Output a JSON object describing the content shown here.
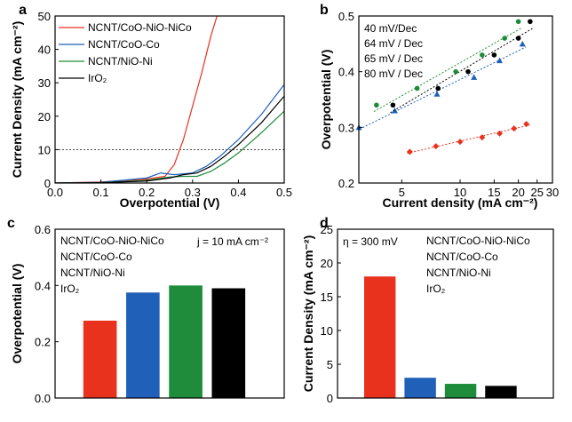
{
  "chart_data": [
    {
      "panel_letter": "a",
      "type": "line",
      "xlabel": "Overpotential (V)",
      "ylabel": "Current Density (mA cm⁻²)",
      "xlim": [
        0.0,
        0.5
      ],
      "ylim": [
        0,
        50
      ],
      "xticks": [
        0.0,
        0.1,
        0.2,
        0.3,
        0.4,
        0.5
      ],
      "xtick_labels": [
        "0.0",
        "0.1",
        "0.2",
        "0.3",
        "0.4",
        "0.5"
      ],
      "yticks": [
        0,
        10,
        20,
        30,
        40,
        50
      ],
      "ytick_labels": [
        "0",
        "10",
        "20",
        "30",
        "40",
        "50"
      ],
      "reference_line_y": 10,
      "legend_placement": "top-left",
      "grid": false,
      "series": [
        {
          "name": "NCNT/CoO-NiO-NiCo",
          "color": "#e8321e",
          "x": [
            0.0,
            0.1,
            0.2,
            0.24,
            0.26,
            0.28,
            0.3,
            0.32,
            0.34,
            0.36
          ],
          "y": [
            0.0,
            0.3,
            1.2,
            2.0,
            5.5,
            13,
            23,
            33,
            44,
            53
          ]
        },
        {
          "name": "NCNT/CoO-Co",
          "color": "#2060b8",
          "x": [
            0.0,
            0.1,
            0.2,
            0.23,
            0.26,
            0.3,
            0.33,
            0.36,
            0.4,
            0.45,
            0.5
          ],
          "y": [
            0.0,
            0.2,
            1.5,
            3.0,
            2.5,
            3.0,
            5.0,
            8.0,
            13.0,
            20.5,
            29.5
          ]
        },
        {
          "name": "NCNT/NiO-Ni",
          "color": "#1e8c3a",
          "x": [
            0.0,
            0.1,
            0.2,
            0.25,
            0.28,
            0.31,
            0.34,
            0.37,
            0.4,
            0.45,
            0.5
          ],
          "y": [
            0.0,
            0.1,
            0.8,
            1.8,
            2.0,
            2.0,
            3.5,
            6.0,
            9.0,
            15.0,
            21.5
          ]
        },
        {
          "name": "IrO₂",
          "color": "#000000",
          "x": [
            0.0,
            0.1,
            0.2,
            0.25,
            0.28,
            0.31,
            0.34,
            0.37,
            0.4,
            0.45,
            0.5
          ],
          "y": [
            0.0,
            0.1,
            0.6,
            1.5,
            2.5,
            3.0,
            5.0,
            8.0,
            11.5,
            18.0,
            26.0
          ]
        }
      ]
    },
    {
      "panel_letter": "b",
      "type": "scatter",
      "xlabel": "Current density (mA cm⁻²)",
      "ylabel": "Overpotential (V)",
      "xscale": "log",
      "xlim": [
        3,
        30
      ],
      "ylim": [
        0.2,
        0.5
      ],
      "xticks": [
        5,
        10,
        15,
        20,
        25,
        30
      ],
      "xtick_labels": [
        "5",
        "10",
        "15",
        "20",
        "25",
        "30"
      ],
      "yticks": [
        0.2,
        0.3,
        0.4,
        0.5
      ],
      "ytick_labels": [
        "0.2",
        "0.3",
        "0.4",
        "0.5"
      ],
      "legend_placement": "top-left",
      "grid": false,
      "series": [
        {
          "name": "40 mV/Dec",
          "color": "#e8321e",
          "marker": "diamond",
          "x": [
            5.5,
            7.5,
            10,
            13,
            16,
            19,
            22
          ],
          "y": [
            0.256,
            0.266,
            0.274,
            0.282,
            0.289,
            0.298,
            0.306
          ]
        },
        {
          "name": "64 mV / Dec",
          "color": "#2060b8",
          "marker": "triangle",
          "x": [
            3.0,
            4.6,
            7.6,
            11.8,
            16.0,
            21.0
          ],
          "y": [
            0.3,
            0.33,
            0.36,
            0.39,
            0.42,
            0.45
          ]
        },
        {
          "name": "65 mV / Dec",
          "color": "#000000",
          "marker": "circle",
          "x": [
            4.5,
            7.7,
            11.0,
            15.0,
            20.0,
            23.0
          ],
          "y": [
            0.34,
            0.37,
            0.4,
            0.43,
            0.46,
            0.49
          ]
        },
        {
          "name": "80 mV / Dec",
          "color": "#1e8c3a",
          "marker": "circle",
          "x": [
            3.7,
            6.0,
            9.5,
            13.0,
            17.0,
            20.0
          ],
          "y": [
            0.34,
            0.37,
            0.4,
            0.43,
            0.46,
            0.49
          ]
        }
      ]
    },
    {
      "panel_letter": "c",
      "type": "bar",
      "ylabel": "Overpotential (V)",
      "annotation": "j = 10 mA cm⁻²",
      "categories": [
        "NCNT/CoO-NiO-NiCo",
        "NCNT/CoO-Co",
        "NCNT/NiO-Ni",
        "IrO₂"
      ],
      "colors": [
        "#e8321e",
        "#2060b8",
        "#1e8c3a",
        "#000000"
      ],
      "values": [
        0.275,
        0.375,
        0.4,
        0.39
      ],
      "ylim": [
        0.0,
        0.6
      ],
      "yticks": [
        0.0,
        0.2,
        0.4,
        0.6
      ],
      "ytick_labels": [
        "0.0",
        "0.2",
        "0.4",
        "0.6"
      ],
      "legend_placement": "top-left"
    },
    {
      "panel_letter": "d",
      "type": "bar",
      "ylabel": "Current Density (mA cm⁻²)",
      "annotation": "η = 300 mV",
      "categories": [
        "NCNT/CoO-NiO-NiCo",
        "NCNT/CoO-Co",
        "NCNT/NiO-Ni",
        "IrO₂"
      ],
      "colors": [
        "#e8321e",
        "#2060b8",
        "#1e8c3a",
        "#000000"
      ],
      "values": [
        18.0,
        3.0,
        2.1,
        1.8
      ],
      "ylim": [
        0,
        25
      ],
      "yticks": [
        0,
        5,
        10,
        15,
        20,
        25
      ],
      "ytick_labels": [
        "0",
        "5",
        "10",
        "15",
        "20",
        "25"
      ],
      "legend_placement": "top-right"
    }
  ]
}
